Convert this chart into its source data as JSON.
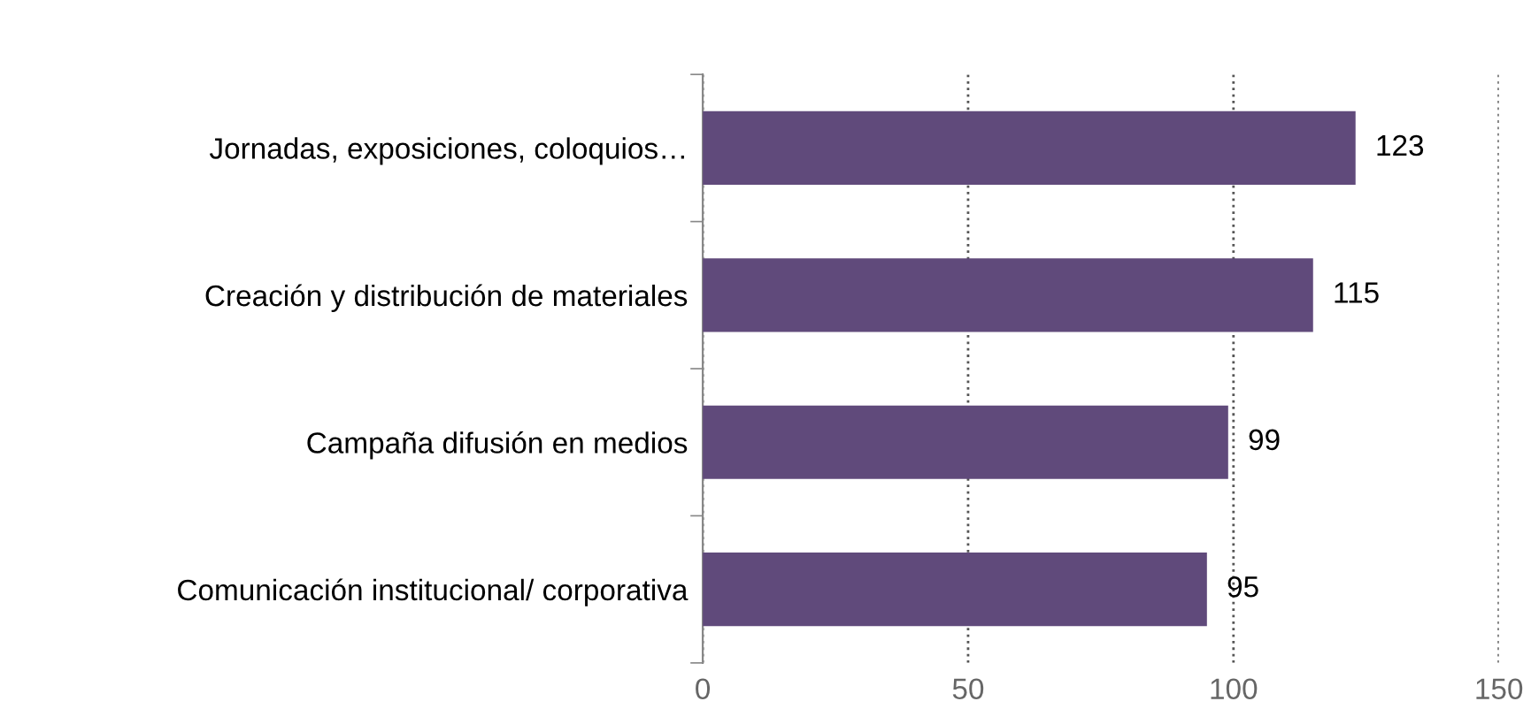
{
  "chart_data": {
    "type": "bar",
    "orientation": "horizontal",
    "categories": [
      "Jornadas, exposiciones, coloquios…",
      "Creación y distribución de materiales",
      "Campaña difusión en medios",
      "Comunicación institucional/ corporativa"
    ],
    "values": [
      123,
      115,
      99,
      95
    ],
    "color": "#604a7b",
    "xlim": [
      0,
      150
    ],
    "xticks": [
      0,
      50,
      100,
      150
    ],
    "grid": "x",
    "data_labels": true,
    "legend": false
  }
}
